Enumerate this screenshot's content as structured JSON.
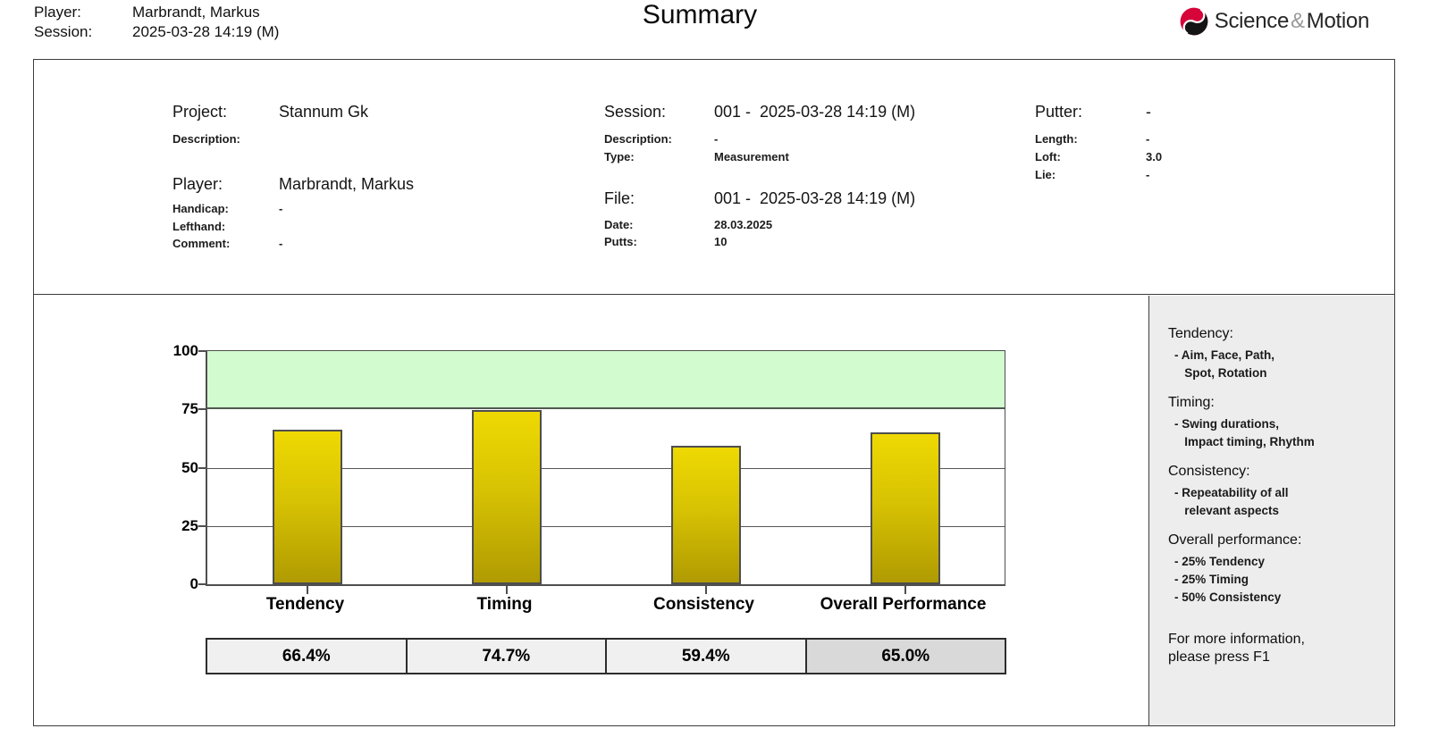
{
  "header": {
    "player_label": "Player:",
    "player_value": "Marbrandt, Markus",
    "session_label": "Session:",
    "session_value": "2025-03-28 14:19 (M)",
    "title": "Summary",
    "logo": {
      "science": "Science",
      "amp": "&",
      "motion": "Motion",
      "icon_red": "#d6053a",
      "icon_black": "#141414"
    }
  },
  "info": {
    "project": {
      "label": "Project:",
      "value": "Stannum Gk"
    },
    "project_description": {
      "label": "Description:",
      "value": ""
    },
    "player": {
      "label": "Player:",
      "value": "Marbrandt, Markus"
    },
    "handicap": {
      "label": "Handicap:",
      "value": "-"
    },
    "lefthand": {
      "label": "Lefthand:",
      "value": ""
    },
    "comment": {
      "label": "Comment:",
      "value": "-"
    },
    "session": {
      "label": "Session:",
      "value": "001 -  2025-03-28 14:19 (M)"
    },
    "session_description": {
      "label": "Description:",
      "value": "-"
    },
    "type": {
      "label": "Type:",
      "value": "Measurement"
    },
    "file": {
      "label": "File:",
      "value": "001 -  2025-03-28 14:19 (M)"
    },
    "date": {
      "label": "Date:",
      "value": "28.03.2025"
    },
    "putts": {
      "label": "Putts:",
      "value": "10"
    },
    "putter": {
      "label": "Putter:",
      "value": "-"
    },
    "length": {
      "label": "Length:",
      "value": "-"
    },
    "loft": {
      "label": "Loft:",
      "value": "3.0"
    },
    "lie": {
      "label": "Lie:",
      "value": "-"
    }
  },
  "chart_data": {
    "type": "bar",
    "categories": [
      "Tendency",
      "Timing",
      "Consistency",
      "Overall Performance"
    ],
    "values": [
      66.4,
      74.7,
      59.4,
      65.0
    ],
    "value_labels": [
      "66.4%",
      "74.7%",
      "59.4%",
      "65.0%"
    ],
    "ylim": [
      0,
      100
    ],
    "yticks": [
      0,
      25,
      50,
      75,
      100
    ],
    "green_zone": [
      75,
      100
    ],
    "grid": true,
    "legend": "none",
    "green_zone_color": "#d3fbd0",
    "bar_color_top": "#eed903",
    "bar_color_bottom": "#b09b02",
    "highlight_cell_index": 3
  },
  "sidebar": {
    "sections": [
      {
        "title": "Tendency:",
        "lines": [
          "- Aim, Face, Path,",
          "   Spot, Rotation"
        ]
      },
      {
        "title": "Timing:",
        "lines": [
          "- Swing durations,",
          "   Impact timing, Rhythm"
        ]
      },
      {
        "title": "Consistency:",
        "lines": [
          "- Repeatability of all",
          "   relevant aspects"
        ]
      },
      {
        "title": "Overall performance:",
        "lines": [
          "- 25% Tendency",
          "- 25% Timing",
          "- 50% Consistency"
        ]
      }
    ],
    "footer_lines": [
      "For more information,",
      "please press F1"
    ]
  }
}
